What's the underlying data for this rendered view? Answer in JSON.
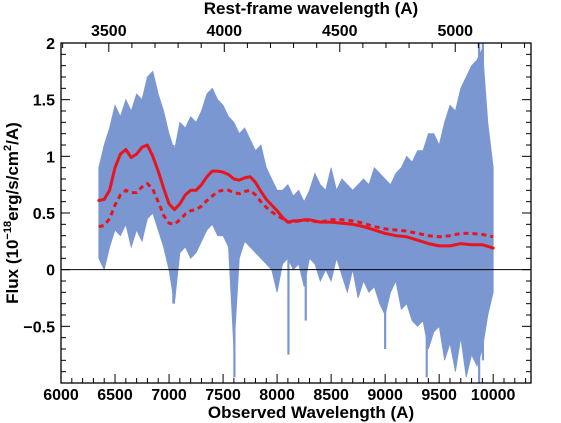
{
  "chart_data": {
    "type": "line",
    "title": "",
    "xlabel": "Observed Wavelength (A)",
    "ylabel_parts": {
      "pre": "Flux (10",
      "exp": "−18",
      "mid": "erg/s/cm",
      "exp2": "2",
      "post": "/A)"
    },
    "top_xlabel": "Rest-frame wavelength (A)",
    "xlim": [
      6000,
      10350
    ],
    "ylim": [
      -1.0,
      2.0
    ],
    "top_xlim_rest": [
      3293,
      5328
    ],
    "x_ticks": [
      "6000",
      "6500",
      "7000",
      "7500",
      "8000",
      "8500",
      "9000",
      "9500",
      "10000"
    ],
    "y_ticks": [
      "−0.5",
      "0",
      "0.5",
      "1",
      "1.5",
      "2"
    ],
    "y_tick_values": [
      -0.5,
      0,
      0.5,
      1,
      1.5,
      2
    ],
    "top_ticks": [
      "3500",
      "4000",
      "4500",
      "5000"
    ],
    "top_tick_values": [
      3500,
      4000,
      4500,
      5000
    ],
    "zero_line": 0,
    "colors": {
      "spectrum": "#7b97d2",
      "model": "#e8141e",
      "zero_line": "#000000"
    },
    "series": [
      {
        "style": "band",
        "x": [
          6350,
          6400,
          6450,
          6500,
          6550,
          6600,
          6650,
          6700,
          6750,
          6800,
          6850,
          6900,
          6950,
          7000,
          7050,
          7100,
          7150,
          7200,
          7250,
          7300,
          7350,
          7400,
          7450,
          7500,
          7550,
          7600,
          7650,
          7700,
          7750,
          7800,
          7850,
          7900,
          7950,
          8000,
          8050,
          8100,
          8150,
          8200,
          8250,
          8300,
          8350,
          8400,
          8450,
          8500,
          8550,
          8600,
          8650,
          8700,
          8750,
          8800,
          8850,
          8900,
          8950,
          9000,
          9050,
          9100,
          9150,
          9200,
          9250,
          9300,
          9350,
          9400,
          9450,
          9500,
          9550,
          9600,
          9650,
          9700,
          9750,
          9800,
          9850,
          9900,
          9950,
          10000
        ],
        "upper": [
          0.9,
          1.1,
          1.25,
          1.45,
          1.35,
          1.5,
          1.4,
          1.55,
          1.5,
          1.7,
          1.75,
          1.55,
          1.4,
          1.2,
          1.05,
          1.3,
          1.25,
          1.35,
          1.3,
          1.4,
          1.55,
          1.6,
          1.5,
          1.45,
          1.35,
          1.3,
          1.2,
          1.25,
          1.15,
          1.05,
          1.1,
          0.9,
          0.8,
          0.7,
          0.7,
          0.75,
          0.65,
          0.7,
          0.6,
          0.7,
          0.85,
          0.75,
          0.7,
          0.9,
          0.7,
          0.8,
          0.75,
          0.7,
          0.75,
          0.8,
          0.75,
          0.9,
          0.85,
          0.8,
          0.75,
          0.85,
          0.9,
          1.0,
          0.95,
          1.05,
          1.05,
          1.2,
          1.2,
          1.1,
          1.3,
          1.45,
          1.4,
          1.6,
          1.7,
          1.8,
          1.85,
          1.95,
          1.3,
          0.9
        ],
        "lower": [
          0.1,
          0.0,
          0.2,
          0.35,
          0.3,
          0.4,
          0.2,
          0.35,
          0.25,
          0.45,
          0.5,
          0.35,
          0.2,
          0.0,
          -0.3,
          0.15,
          0.2,
          0.1,
          0.15,
          0.25,
          0.35,
          0.4,
          0.3,
          0.3,
          0.2,
          -0.7,
          0.1,
          0.25,
          0.2,
          0.15,
          0.1,
          0.05,
          0.0,
          -0.2,
          0.05,
          0.1,
          0.0,
          0.05,
          -0.15,
          0.1,
          0.05,
          -0.1,
          0.0,
          -0.1,
          0.1,
          -0.05,
          -0.2,
          0.0,
          -0.25,
          -0.1,
          -0.2,
          -0.15,
          -0.3,
          -0.4,
          -0.2,
          -0.1,
          -0.35,
          -0.3,
          -0.45,
          -0.5,
          -0.45,
          -0.7,
          -0.55,
          -0.5,
          -0.8,
          -0.65,
          -0.9,
          -0.6,
          -0.95,
          -0.75,
          -0.85,
          -0.7,
          -0.4,
          -0.2
        ],
        "spikes": [
          {
            "x": 7040,
            "lo": -0.3,
            "hi": 1.1
          },
          {
            "x": 7605,
            "lo": -0.95,
            "hi": 0.3
          },
          {
            "x": 8105,
            "lo": -0.75,
            "hi": 0.6
          },
          {
            "x": 8265,
            "lo": -0.45,
            "hi": 0.55
          },
          {
            "x": 9000,
            "lo": -0.7,
            "hi": 0.7
          },
          {
            "x": 9385,
            "lo": -0.95,
            "hi": 0.7
          },
          {
            "x": 9870,
            "lo": -1.0,
            "hi": 2.0
          },
          {
            "x": 9905,
            "lo": -0.8,
            "hi": 2.0
          }
        ]
      },
      {
        "style": "solid",
        "x": [
          6350,
          6400,
          6450,
          6500,
          6550,
          6600,
          6650,
          6700,
          6750,
          6800,
          6850,
          6900,
          6950,
          7000,
          7050,
          7100,
          7150,
          7200,
          7250,
          7300,
          7350,
          7400,
          7450,
          7500,
          7550,
          7600,
          7650,
          7700,
          7750,
          7800,
          7850,
          7900,
          7950,
          8000,
          8050,
          8100,
          8150,
          8200,
          8250,
          8300,
          8400,
          8500,
          8600,
          8700,
          8800,
          8900,
          9000,
          9100,
          9200,
          9300,
          9400,
          9500,
          9600,
          9700,
          9800,
          9900,
          10000
        ],
        "values": [
          0.61,
          0.62,
          0.7,
          0.9,
          1.02,
          1.06,
          0.99,
          1.02,
          1.08,
          1.1,
          1.0,
          0.87,
          0.72,
          0.58,
          0.53,
          0.58,
          0.66,
          0.7,
          0.7,
          0.75,
          0.82,
          0.87,
          0.87,
          0.86,
          0.84,
          0.8,
          0.79,
          0.81,
          0.82,
          0.77,
          0.69,
          0.62,
          0.57,
          0.52,
          0.46,
          0.42,
          0.43,
          0.43,
          0.44,
          0.44,
          0.42,
          0.42,
          0.41,
          0.4,
          0.38,
          0.35,
          0.32,
          0.3,
          0.29,
          0.26,
          0.23,
          0.21,
          0.21,
          0.23,
          0.22,
          0.22,
          0.19
        ]
      },
      {
        "style": "dashed",
        "x": [
          6350,
          6400,
          6450,
          6500,
          6550,
          6600,
          6650,
          6700,
          6750,
          6800,
          6850,
          6900,
          6950,
          7000,
          7050,
          7100,
          7150,
          7200,
          7250,
          7300,
          7350,
          7400,
          7450,
          7500,
          7550,
          7600,
          7650,
          7700,
          7750,
          7800,
          7850,
          7900,
          7950,
          8000,
          8050,
          8100,
          8150,
          8200,
          8250,
          8300,
          8400,
          8500,
          8600,
          8700,
          8800,
          8900,
          9000,
          9100,
          9200,
          9300,
          9400,
          9500,
          9600,
          9700,
          9800,
          9900,
          10000
        ],
        "values": [
          0.38,
          0.39,
          0.45,
          0.57,
          0.66,
          0.7,
          0.68,
          0.68,
          0.73,
          0.76,
          0.71,
          0.6,
          0.48,
          0.41,
          0.4,
          0.44,
          0.49,
          0.52,
          0.53,
          0.56,
          0.61,
          0.65,
          0.69,
          0.7,
          0.7,
          0.68,
          0.67,
          0.69,
          0.7,
          0.66,
          0.6,
          0.55,
          0.51,
          0.48,
          0.45,
          0.42,
          0.42,
          0.43,
          0.44,
          0.43,
          0.42,
          0.44,
          0.44,
          0.43,
          0.41,
          0.38,
          0.36,
          0.35,
          0.34,
          0.32,
          0.3,
          0.29,
          0.3,
          0.32,
          0.32,
          0.31,
          0.29
        ]
      }
    ]
  }
}
